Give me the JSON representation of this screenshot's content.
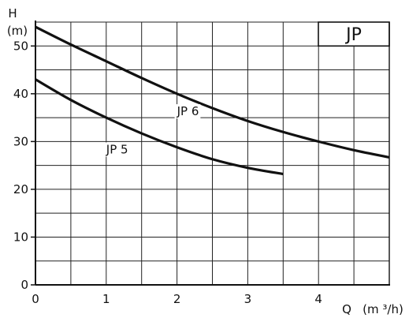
{
  "chart_data": {
    "type": "line",
    "title": "",
    "badge": "JP",
    "ylabel_top": "H",
    "ylabel_unit": "(m)",
    "xlabel_prefix": "Q",
    "xlabel_unit": "(m ³/h)",
    "xlim": [
      0,
      5
    ],
    "ylim": [
      0,
      55
    ],
    "xticks": [
      0,
      1,
      2,
      3,
      4
    ],
    "yticks": [
      0,
      10,
      20,
      30,
      40,
      50
    ],
    "grid": true,
    "series": [
      {
        "name": "JP 6",
        "color": "#111111",
        "label_at": [
          2.0,
          35.5
        ],
        "x": [
          0,
          0.5,
          1,
          1.5,
          2,
          2.5,
          3,
          3.5,
          4,
          4.5,
          5
        ],
        "y": [
          54,
          50.3,
          46.8,
          43.3,
          40,
          37,
          34.3,
          32,
          30,
          28.2,
          26.7
        ]
      },
      {
        "name": "JP 5",
        "color": "#111111",
        "label_at": [
          1.0,
          27.5
        ],
        "x": [
          0,
          0.5,
          1,
          1.5,
          2,
          2.5,
          3,
          3.5
        ],
        "y": [
          43,
          38.7,
          35,
          31.7,
          28.8,
          26.3,
          24.5,
          23.2
        ]
      }
    ]
  }
}
